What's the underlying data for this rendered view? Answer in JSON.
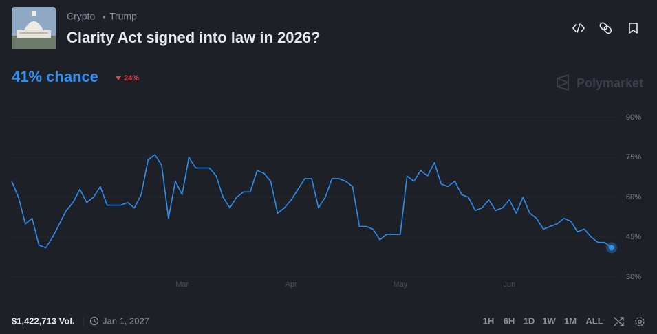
{
  "header": {
    "breadcrumbs": [
      "Crypto",
      "Trump"
    ],
    "title": "Clarity Act signed into law in 2026?",
    "chance": "41% chance",
    "change": "24%",
    "brand": "Polymarket"
  },
  "footer": {
    "volume": "$1,422,713 Vol.",
    "end_date": "Jan 1, 2027",
    "ranges": [
      "1H",
      "6H",
      "1D",
      "1W",
      "1M",
      "ALL"
    ],
    "active_range": "ALL"
  },
  "chart_data": {
    "type": "line",
    "categories": [
      null,
      null,
      null,
      null,
      null,
      null,
      null,
      null,
      null,
      null,
      null,
      null,
      null,
      null,
      null,
      null,
      null,
      null,
      null,
      null,
      null,
      null,
      null,
      null,
      null,
      "Mar",
      null,
      null,
      null,
      null,
      null,
      null,
      null,
      null,
      null,
      null,
      null,
      null,
      null,
      null,
      null,
      "Apr",
      null,
      null,
      null,
      null,
      null,
      null,
      null,
      null,
      null,
      null,
      null,
      null,
      null,
      null,
      null,
      "May",
      null,
      null,
      null,
      null,
      null,
      null,
      null,
      null,
      null,
      null,
      null,
      null,
      null,
      null,
      null,
      "Jun",
      null,
      null,
      null,
      null,
      null,
      null,
      null,
      null,
      null,
      null,
      null,
      null,
      null,
      null,
      null
    ],
    "series": [
      {
        "color": "#2e8ff0",
        "values": [
          66,
          60,
          50,
          52,
          42,
          41,
          45,
          50,
          55,
          58,
          63,
          58,
          60,
          64,
          57,
          57,
          57,
          58,
          56,
          61,
          74,
          76,
          72,
          52,
          66,
          61,
          75,
          71,
          71,
          71,
          68,
          60,
          56,
          60,
          62,
          62,
          70,
          69,
          66,
          54,
          56,
          59,
          63,
          67,
          67,
          56,
          60,
          67,
          67,
          66,
          64,
          49,
          49,
          48,
          44,
          46,
          46,
          46,
          68,
          66,
          70,
          68,
          73,
          65,
          64,
          66,
          61,
          60,
          55,
          56,
          59,
          55,
          56,
          59,
          54,
          60,
          54,
          52,
          48,
          49,
          50,
          52,
          51,
          47,
          48,
          45,
          43,
          43,
          41
        ]
      }
    ],
    "ylim": [
      30,
      90
    ],
    "yticks": [
      {
        "value": 30,
        "label": "30%"
      },
      {
        "value": 45,
        "label": "45%"
      },
      {
        "value": 60,
        "label": "60%"
      },
      {
        "value": 75,
        "label": "75%"
      },
      {
        "value": 90,
        "label": "90%"
      }
    ],
    "grid": true
  }
}
